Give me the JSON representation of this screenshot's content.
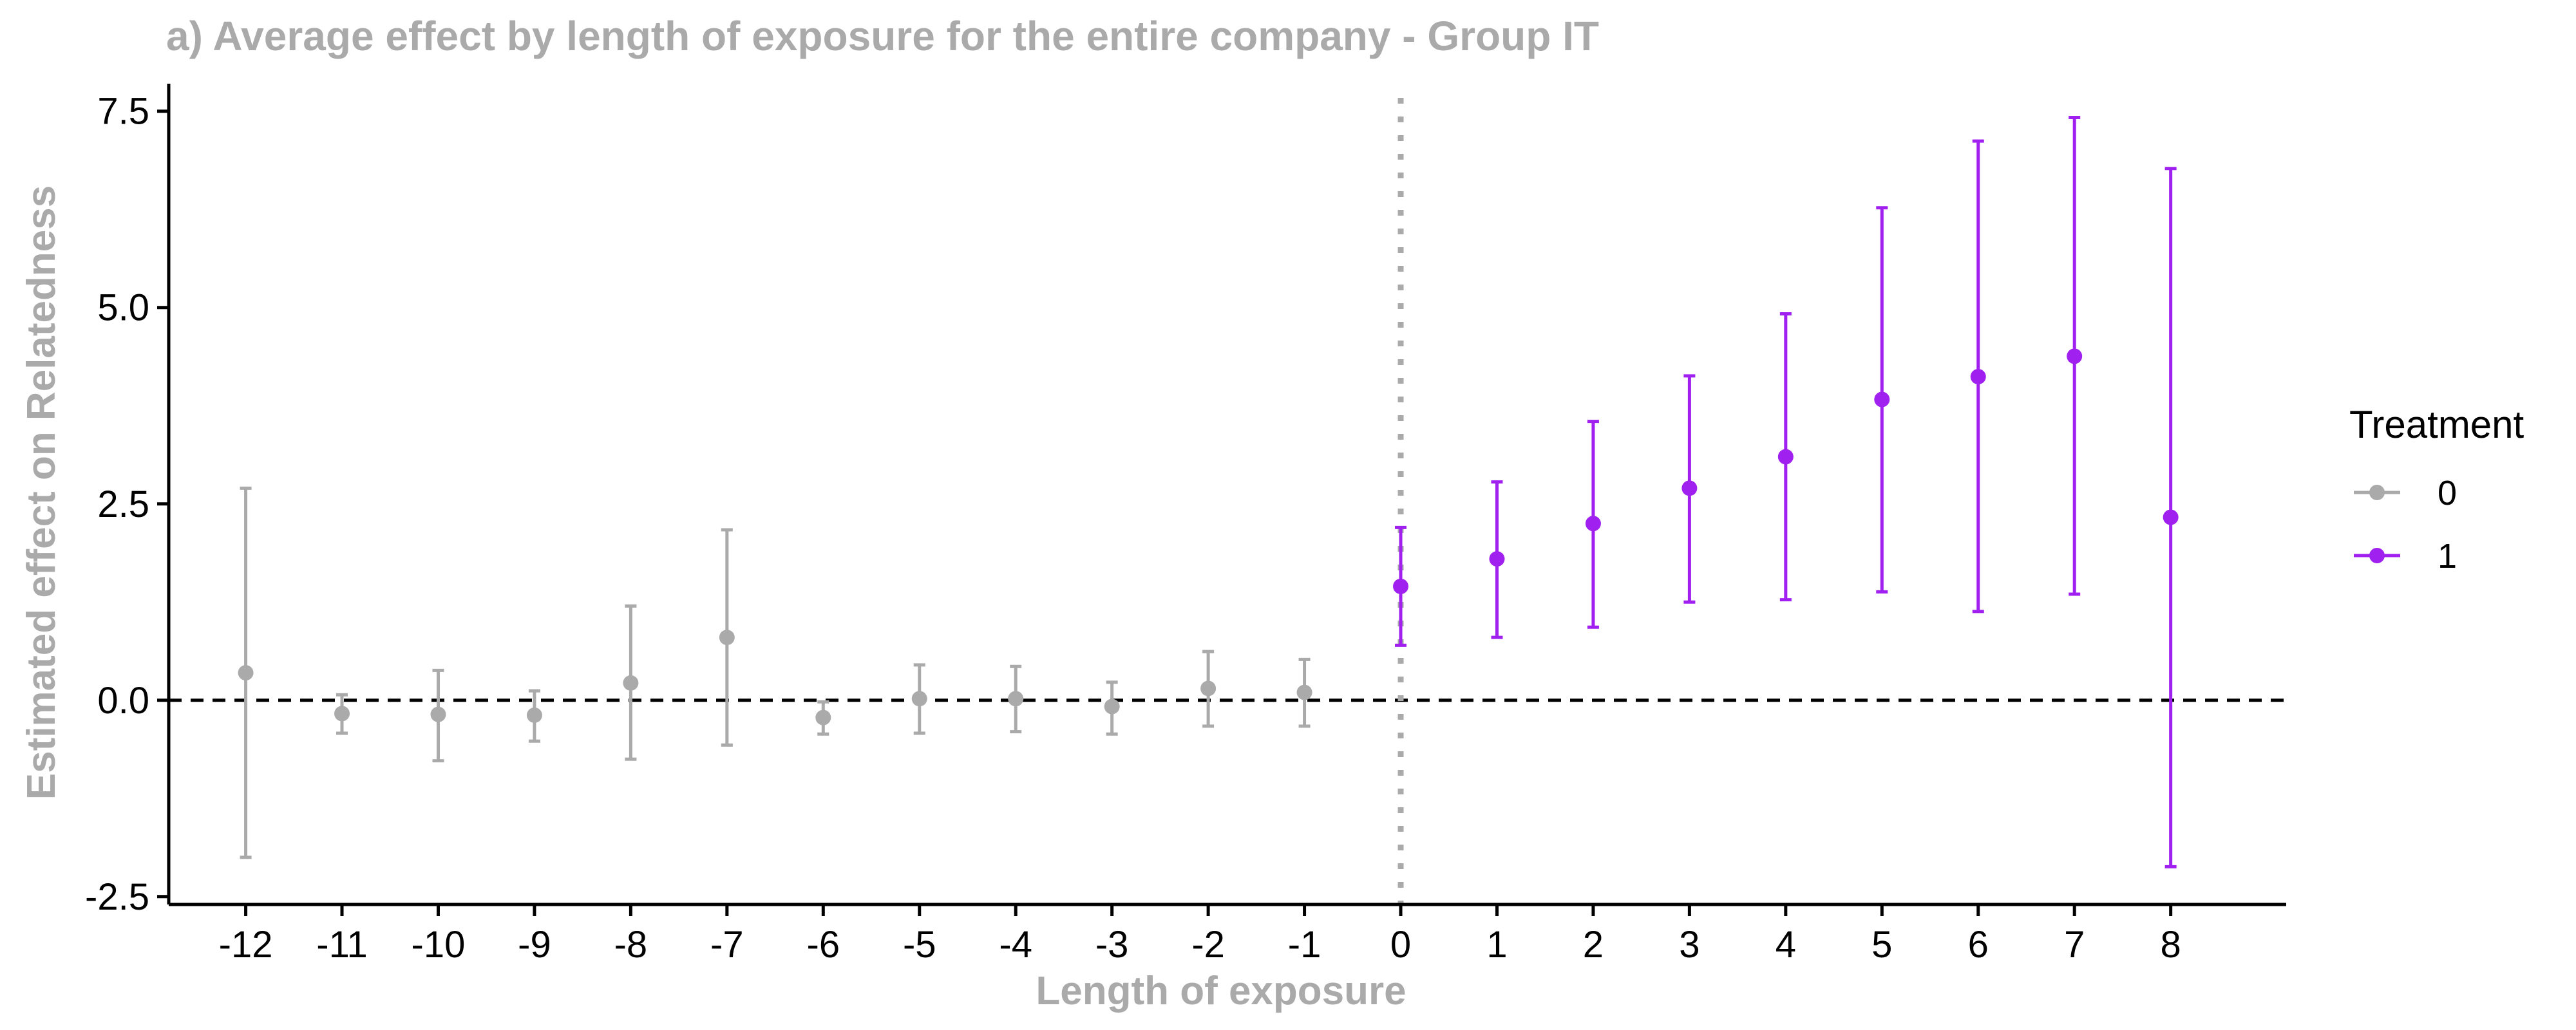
{
  "chart_data": {
    "type": "scatter",
    "title": "a) Average effect by length of exposure for the entire company - Group IT",
    "xlabel": "Length of exposure",
    "ylabel": "Estimated effect on Relatedness",
    "x_ticks": [
      "-12",
      "-11",
      "-10",
      "-9",
      "-8",
      "-7",
      "-6",
      "-5",
      "-4",
      "-3",
      "-2",
      "-1",
      "0",
      "1",
      "2",
      "3",
      "4",
      "5",
      "6",
      "7",
      "8"
    ],
    "y_ticks": [
      "-2.5",
      "0.0",
      "2.5",
      "5.0",
      "7.5"
    ],
    "y_tick_values": [
      -2.5,
      0.0,
      2.5,
      5.0,
      7.5
    ],
    "xlim": [
      -12.8,
      9.2
    ],
    "ylim": [
      -2.6,
      7.85
    ],
    "reference_lines": {
      "horizontal_y": 0,
      "vertical_x": 0
    },
    "legend": {
      "title": "Treatment",
      "placement": "right"
    },
    "colors": {
      "0": "#aaaaaa",
      "1": "#a020f0",
      "axis": "#000000"
    },
    "series": [
      {
        "name": "0",
        "points": [
          {
            "x": -12,
            "y": 0.35,
            "lo": -2.0,
            "hi": 2.7
          },
          {
            "x": -11,
            "y": -0.17,
            "lo": -0.42,
            "hi": 0.07
          },
          {
            "x": -10,
            "y": -0.18,
            "lo": -0.77,
            "hi": 0.38
          },
          {
            "x": -9,
            "y": -0.19,
            "lo": -0.52,
            "hi": 0.12
          },
          {
            "x": -8,
            "y": 0.22,
            "lo": -0.75,
            "hi": 1.2
          },
          {
            "x": -7,
            "y": 0.8,
            "lo": -0.57,
            "hi": 2.17
          },
          {
            "x": -6,
            "y": -0.22,
            "lo": -0.43,
            "hi": -0.02
          },
          {
            "x": -5,
            "y": 0.02,
            "lo": -0.42,
            "hi": 0.45
          },
          {
            "x": -4,
            "y": 0.02,
            "lo": -0.4,
            "hi": 0.43
          },
          {
            "x": -3,
            "y": -0.08,
            "lo": -0.43,
            "hi": 0.23
          },
          {
            "x": -2,
            "y": 0.15,
            "lo": -0.33,
            "hi": 0.62
          },
          {
            "x": -1,
            "y": 0.1,
            "lo": -0.33,
            "hi": 0.52
          }
        ]
      },
      {
        "name": "1",
        "points": [
          {
            "x": 0,
            "y": 1.45,
            "lo": 0.7,
            "hi": 2.2
          },
          {
            "x": 1,
            "y": 1.8,
            "lo": 0.8,
            "hi": 2.78
          },
          {
            "x": 2,
            "y": 2.25,
            "lo": 0.93,
            "hi": 3.55
          },
          {
            "x": 3,
            "y": 2.7,
            "lo": 1.25,
            "hi": 4.13
          },
          {
            "x": 4,
            "y": 3.1,
            "lo": 1.28,
            "hi": 4.92
          },
          {
            "x": 5,
            "y": 3.83,
            "lo": 1.38,
            "hi": 6.27
          },
          {
            "x": 6,
            "y": 4.12,
            "lo": 1.13,
            "hi": 7.12
          },
          {
            "x": 7,
            "y": 4.38,
            "lo": 1.35,
            "hi": 7.42
          },
          {
            "x": 8,
            "y": 2.33,
            "lo": -2.12,
            "hi": 6.77
          }
        ]
      }
    ]
  }
}
